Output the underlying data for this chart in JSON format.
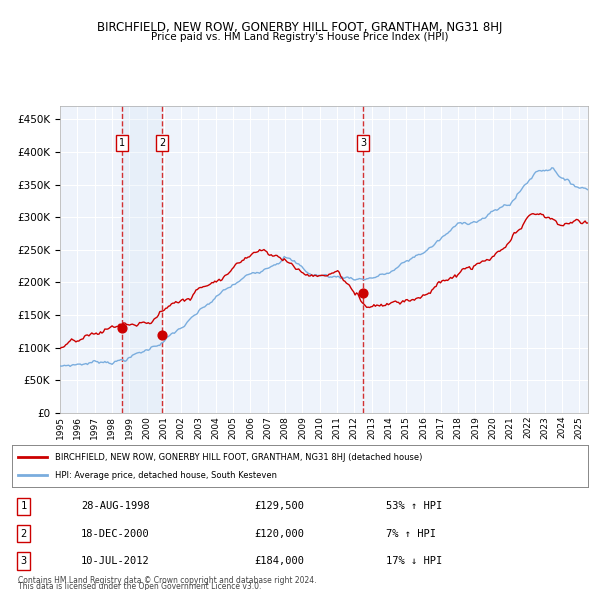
{
  "title": "BIRCHFIELD, NEW ROW, GONERBY HILL FOOT, GRANTHAM, NG31 8HJ",
  "subtitle": "Price paid vs. HM Land Registry's House Price Index (HPI)",
  "legend_red": "BIRCHFIELD, NEW ROW, GONERBY HILL FOOT, GRANTHAM, NG31 8HJ (detached house)",
  "legend_blue": "HPI: Average price, detached house, South Kesteven",
  "footnote1": "Contains HM Land Registry data © Crown copyright and database right 2024.",
  "footnote2": "This data is licensed under the Open Government Licence v3.0.",
  "transactions": [
    {
      "num": 1,
      "date": "28-AUG-1998",
      "price": 129500,
      "pct": "53%",
      "dir": "↑"
    },
    {
      "num": 2,
      "date": "18-DEC-2000",
      "price": 120000,
      "pct": "7%",
      "dir": "↑"
    },
    {
      "num": 3,
      "date": "10-JUL-2012",
      "price": 184000,
      "pct": "17%",
      "dir": "↓"
    }
  ],
  "ylim": [
    0,
    470000
  ],
  "yticks": [
    0,
    50000,
    100000,
    150000,
    200000,
    250000,
    300000,
    350000,
    400000,
    450000
  ],
  "background_color": "#ffffff",
  "plot_bg_color": "#eef3fb",
  "grid_color": "#ffffff",
  "red_color": "#cc0000",
  "blue_color": "#7aadde",
  "highlight_color": "#d6e4f5",
  "dashed_color": "#cc0000"
}
